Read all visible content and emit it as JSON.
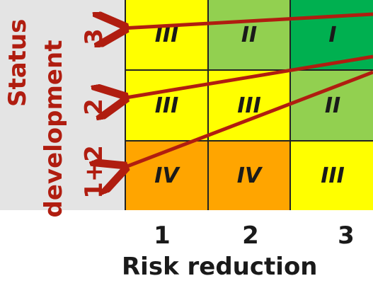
{
  "y_axis": {
    "label_line1": "Status",
    "label_line2": "development",
    "ticks": [
      "3",
      "2",
      "1+2"
    ]
  },
  "x_axis": {
    "label": "Risk reduction",
    "ticks": [
      "1",
      "2",
      "3"
    ]
  },
  "matrix": {
    "rows": [
      [
        {
          "text": "III",
          "color": "#ffff00"
        },
        {
          "text": "II",
          "color": "#92d050"
        },
        {
          "text": "I",
          "color": "#00b050"
        }
      ],
      [
        {
          "text": "III",
          "color": "#ffff00"
        },
        {
          "text": "III",
          "color": "#ffff00"
        },
        {
          "text": "II",
          "color": "#92d050"
        }
      ],
      [
        {
          "text": "IV",
          "color": "#ffa500"
        },
        {
          "text": "IV",
          "color": "#ffa500"
        },
        {
          "text": "III",
          "color": "#ffff00"
        }
      ]
    ]
  },
  "colors": {
    "accent": "#b01d10",
    "panel": "#e4e4e4"
  }
}
